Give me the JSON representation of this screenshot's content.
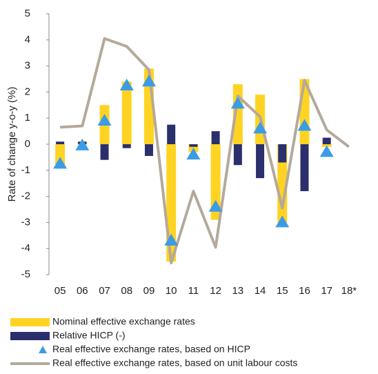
{
  "chart_data": {
    "type": "combo",
    "y_label": "Rate of change y-o-y (%)",
    "categories": [
      "05",
      "06",
      "07",
      "08",
      "09",
      "10",
      "11",
      "12",
      "13",
      "14",
      "15",
      "16",
      "17",
      "18*"
    ],
    "ylim": [
      -5,
      5
    ],
    "yticks": [
      -5,
      -4,
      -3,
      -2,
      -1,
      0,
      1,
      2,
      3,
      4,
      5
    ],
    "series": [
      {
        "name": "Nominal effective exchange rates",
        "kind": "bar",
        "color": "#ffd323",
        "values": [
          -0.8,
          0.1,
          1.5,
          2.4,
          2.9,
          -4.5,
          -0.3,
          -2.9,
          2.3,
          1.9,
          -3.0,
          2.5,
          -0.1,
          null
        ]
      },
      {
        "name": "Relative HICP (-)",
        "kind": "bar",
        "color": "#2b2f6b",
        "values": [
          0.1,
          0.1,
          -0.6,
          -0.15,
          -0.45,
          0.75,
          -0.1,
          0.5,
          -0.8,
          -1.3,
          -0.7,
          -1.8,
          0.25,
          null
        ]
      },
      {
        "name": "Real effective exchange rates, based on HICP",
        "kind": "marker",
        "color": "#3c9be6",
        "values": [
          -0.75,
          -0.05,
          0.9,
          2.25,
          2.4,
          -3.7,
          -0.4,
          -2.4,
          1.55,
          0.6,
          -3.0,
          0.7,
          -0.3,
          null
        ]
      },
      {
        "name": "Real effective exchange rates, based on unit labour costs",
        "kind": "line",
        "color": "#b4a99b",
        "values": [
          0.65,
          0.7,
          4.05,
          3.75,
          2.85,
          -4.55,
          -1.8,
          -3.95,
          1.85,
          1.05,
          -2.45,
          2.45,
          0.55,
          -0.1
        ]
      }
    ]
  }
}
